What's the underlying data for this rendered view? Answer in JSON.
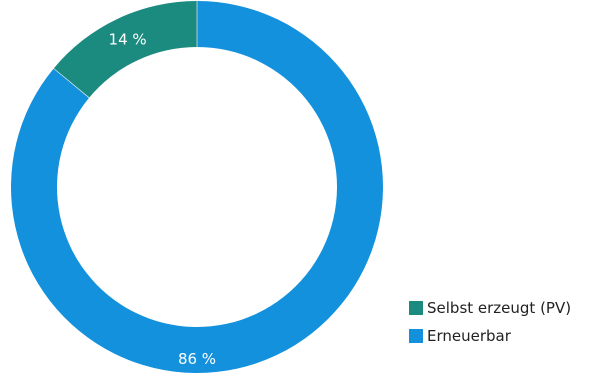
{
  "chart_data": {
    "type": "pie",
    "variant": "donut",
    "slices": [
      {
        "label": "Selbst erzeugt (PV)",
        "value": 14,
        "display": "14 %",
        "color": "#1b8a7f"
      },
      {
        "label": "Erneuerbar",
        "value": 86,
        "display": "86 %",
        "color": "#1391dd"
      }
    ],
    "legend_position": "bottom-right"
  }
}
